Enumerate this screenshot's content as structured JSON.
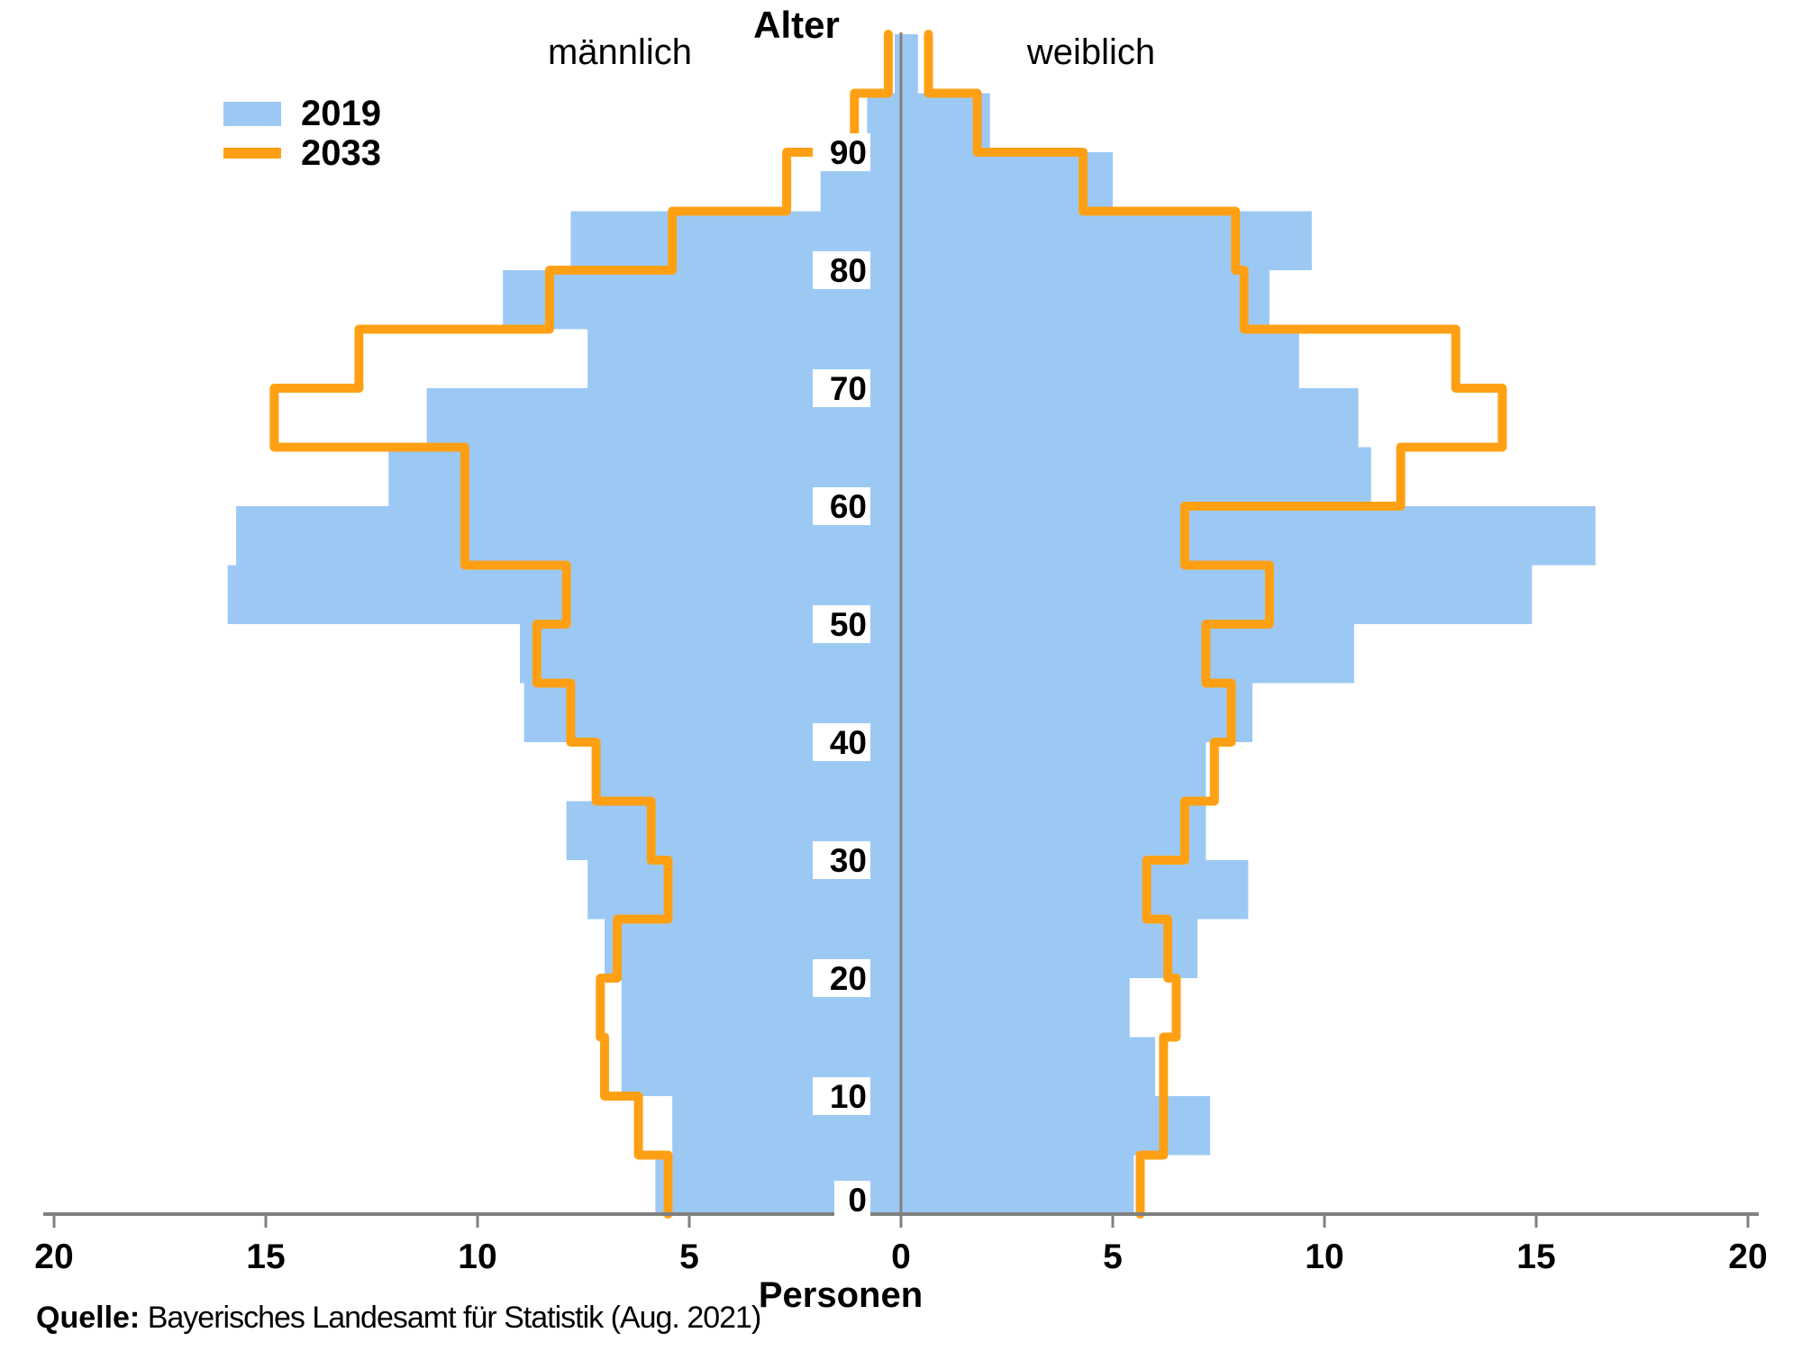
{
  "title": "Alter",
  "side_labels": {
    "male": "männlich",
    "female": "weiblich"
  },
  "x_axis_label": "Personen",
  "legend": [
    {
      "label": "2019",
      "style": "fill"
    },
    {
      "label": "2033",
      "style": "line"
    }
  ],
  "source": {
    "prefix": "Quelle:",
    "text": " Bayerisches Landesamt für Statistik (Aug. 2021)"
  },
  "colors": {
    "fill_2019": "#9CC9F4",
    "line_2033": "#FFA014",
    "axis": "#808080",
    "text": "#000000",
    "label_halo": "#FFFFFF"
  },
  "chart_data": {
    "type": "bar",
    "subtype": "population-pyramid, 5-year age bands, 2019 as filled bars, 2033 projection as step line",
    "age_groups": [
      "0-4",
      "5-9",
      "10-14",
      "15-19",
      "20-24",
      "25-29",
      "30-34",
      "35-39",
      "40-44",
      "45-49",
      "50-54",
      "55-59",
      "60-64",
      "65-69",
      "70-74",
      "75-79",
      "80-84",
      "85-89",
      "90-94",
      "95+"
    ],
    "age_axis_ticks": [
      0,
      10,
      20,
      30,
      40,
      50,
      60,
      70,
      80,
      90
    ],
    "x_axis_ticks": [
      "20",
      "15",
      "10",
      "5",
      "0",
      "5",
      "10",
      "15",
      "20"
    ],
    "x_tick_values": [
      -20,
      -15,
      -10,
      -5,
      0,
      5,
      10,
      15,
      20
    ],
    "xlim_each_side": 20,
    "ylabel": "Alter",
    "xlabel": "Personen",
    "grid": false,
    "legend_position": "top-left",
    "series": [
      {
        "name": "2019",
        "style": "filled-area",
        "male": [
          5.8,
          5.4,
          6.6,
          6.6,
          7.0,
          7.4,
          7.9,
          7.1,
          8.9,
          9.0,
          15.9,
          15.7,
          12.1,
          11.2,
          7.4,
          9.4,
          7.8,
          1.9,
          0.8,
          0.15
        ],
        "female": [
          5.5,
          7.3,
          6.0,
          5.4,
          7.0,
          8.2,
          7.2,
          7.2,
          8.3,
          10.7,
          14.9,
          16.4,
          11.1,
          10.8,
          9.4,
          8.7,
          9.7,
          5.0,
          2.1,
          0.4
        ]
      },
      {
        "name": "2033",
        "style": "step-line",
        "male": [
          5.5,
          6.2,
          7.0,
          7.1,
          6.7,
          5.5,
          5.9,
          7.2,
          7.8,
          8.6,
          7.9,
          10.3,
          10.3,
          14.8,
          12.8,
          8.3,
          5.4,
          2.7,
          1.1,
          0.3
        ],
        "female": [
          5.65,
          6.2,
          6.2,
          6.5,
          6.3,
          5.8,
          6.7,
          7.4,
          7.8,
          7.2,
          8.7,
          6.7,
          11.8,
          14.2,
          13.1,
          8.1,
          7.9,
          4.3,
          1.8,
          0.65
        ]
      }
    ]
  }
}
